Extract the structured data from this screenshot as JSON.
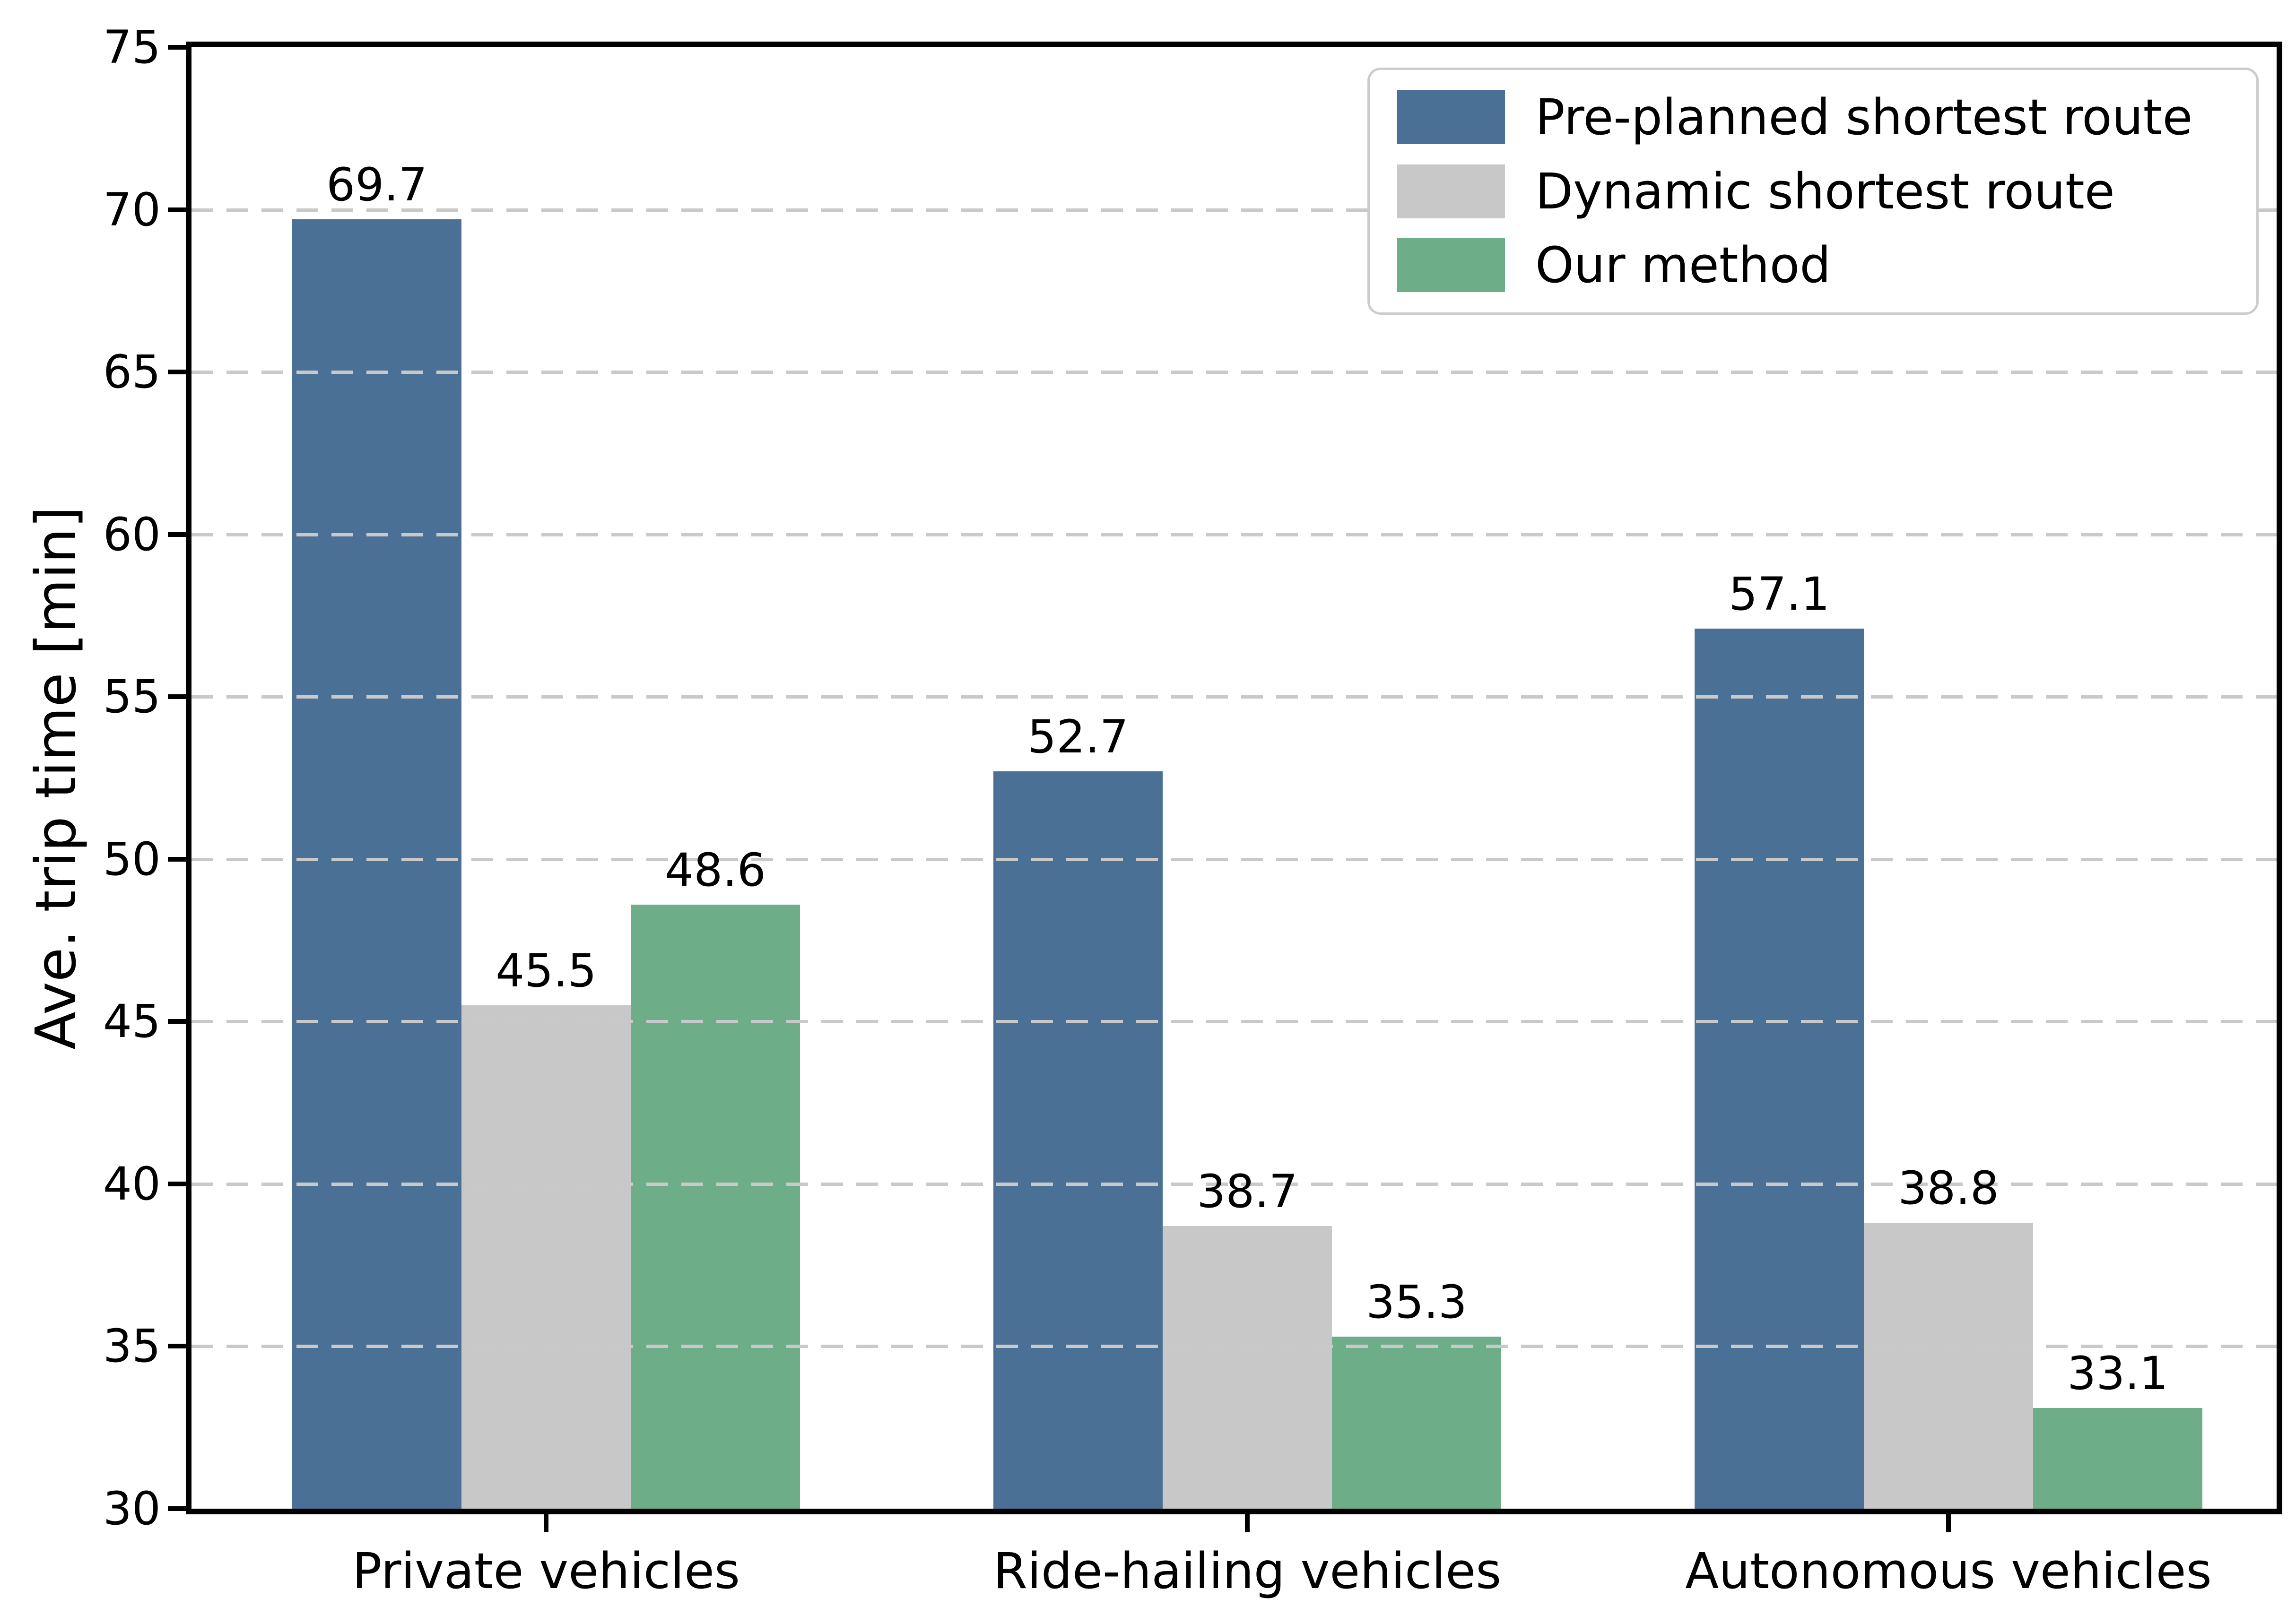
{
  "chart_data": {
    "type": "bar",
    "title": "",
    "xlabel": "",
    "ylabel": "Ave. trip time [min]",
    "ylim": [
      30,
      75
    ],
    "yticks": [
      30,
      35,
      40,
      45,
      50,
      55,
      60,
      65,
      70,
      75
    ],
    "grid": "horizontal dashed, drawn above bars",
    "grid_color": "#c9c9c9",
    "legend_position": "upper right",
    "bar_value_labels": true,
    "categories": [
      "Private vehicles",
      "Ride-hailing vehicles",
      "Autonomous vehicles"
    ],
    "series": [
      {
        "name": "Pre-planned shortest route",
        "color": "#4a7096",
        "values": [
          69.7,
          52.7,
          57.1
        ]
      },
      {
        "name": "Dynamic shortest route",
        "color": "#c8c8c8",
        "values": [
          45.5,
          38.7,
          38.8
        ]
      },
      {
        "name": "Our method",
        "color": "#6dae88",
        "values": [
          48.6,
          35.3,
          33.1
        ]
      }
    ]
  }
}
